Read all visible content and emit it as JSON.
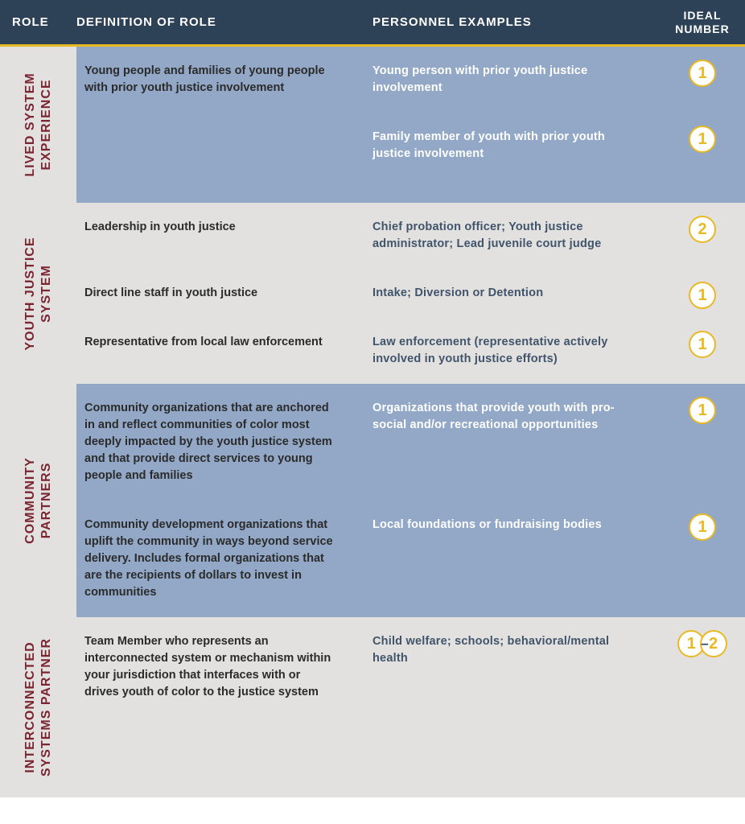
{
  "colors": {
    "header_bg": "#2e4257",
    "header_text": "#ffffff",
    "accent_gold": "#e8b923",
    "role_text": "#7b2531",
    "section_blue": "#92a8c6",
    "section_grey": "#e2e1e0",
    "text_dark": "#2b2b2b",
    "text_muted_blue": "#40546a"
  },
  "header": {
    "role": "ROLE",
    "definition": "DEFINITION OF ROLE",
    "personnel": "PERSONNEL EXAMPLES",
    "ideal_number": "IDEAL NUMBER"
  },
  "sections": [
    {
      "role_label": "LIVED SYSTEM\nEXPERIENCE",
      "tone": "blue",
      "rows": [
        {
          "definition": "Young people and families of young people with prior youth justice involvement",
          "personnel": "Young person with prior youth justice involvement",
          "ideal": "1"
        },
        {
          "definition": "",
          "personnel": "Family member of youth with prior youth justice involvement",
          "ideal": "1"
        }
      ]
    },
    {
      "role_label": "YOUTH JUSTICE\nSYSTEM",
      "tone": "grey",
      "rows": [
        {
          "definition": "Leadership in youth justice",
          "personnel": "Chief probation officer; Youth justice administrator; Lead juvenile court judge",
          "ideal": "2"
        },
        {
          "definition": "Direct line staff in youth justice",
          "personnel": "Intake; Diversion or Detention",
          "ideal": "1"
        },
        {
          "definition": "Representative from local law enforcement",
          "personnel": "Law enforcement (representative actively involved in youth justice efforts)",
          "ideal": "1"
        }
      ]
    },
    {
      "role_label": "COMMUNITY\nPARTNERS",
      "tone": "blue",
      "rows": [
        {
          "definition": "Community organizations that are anchored in and reflect communities of color most deeply impacted by the youth justice system and that provide direct services to young people and families",
          "personnel": "Organizations that provide youth with pro-social and/or recreational opportunities",
          "ideal": "1"
        },
        {
          "definition": "Community development organizations that uplift the community in ways beyond service delivery. Includes formal organizations that are the recipients of dollars to invest in communities",
          "personnel": "Local foundations or fundraising bodies",
          "ideal": "1"
        }
      ]
    },
    {
      "role_label": "INTERCONNECTED\nSYSTEMS PARTNER",
      "tone": "grey",
      "rows": [
        {
          "definition": "Team Member who represents an interconnected system or mechanism within your jurisdiction that interfaces with or drives youth of color to the justice system",
          "personnel": "Child welfare; schools; behavioral/mental health",
          "ideal_range": [
            "1",
            "2"
          ]
        }
      ]
    }
  ]
}
